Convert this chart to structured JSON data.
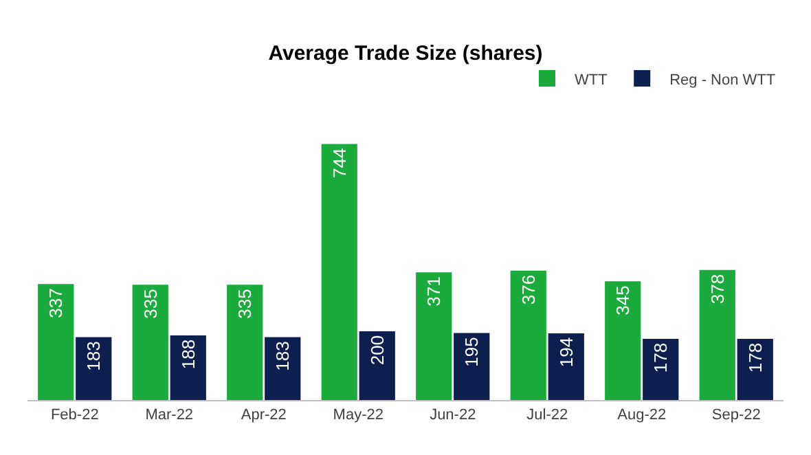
{
  "chart_data": {
    "type": "bar",
    "title": "Average Trade Size (shares)",
    "categories": [
      "Feb-22",
      "Mar-22",
      "Apr-22",
      "May-22",
      "Jun-22",
      "Jul-22",
      "Aug-22",
      "Sep-22"
    ],
    "series": [
      {
        "name": "WTT",
        "color": "#1aab3c",
        "values": [
          337,
          335,
          335,
          744,
          371,
          376,
          345,
          378
        ]
      },
      {
        "name": "Reg - Non WTT",
        "color": "#0d1f4f",
        "values": [
          183,
          188,
          183,
          200,
          195,
          194,
          178,
          178
        ]
      }
    ],
    "data_labels": true,
    "legend": "top right",
    "grid": false
  }
}
